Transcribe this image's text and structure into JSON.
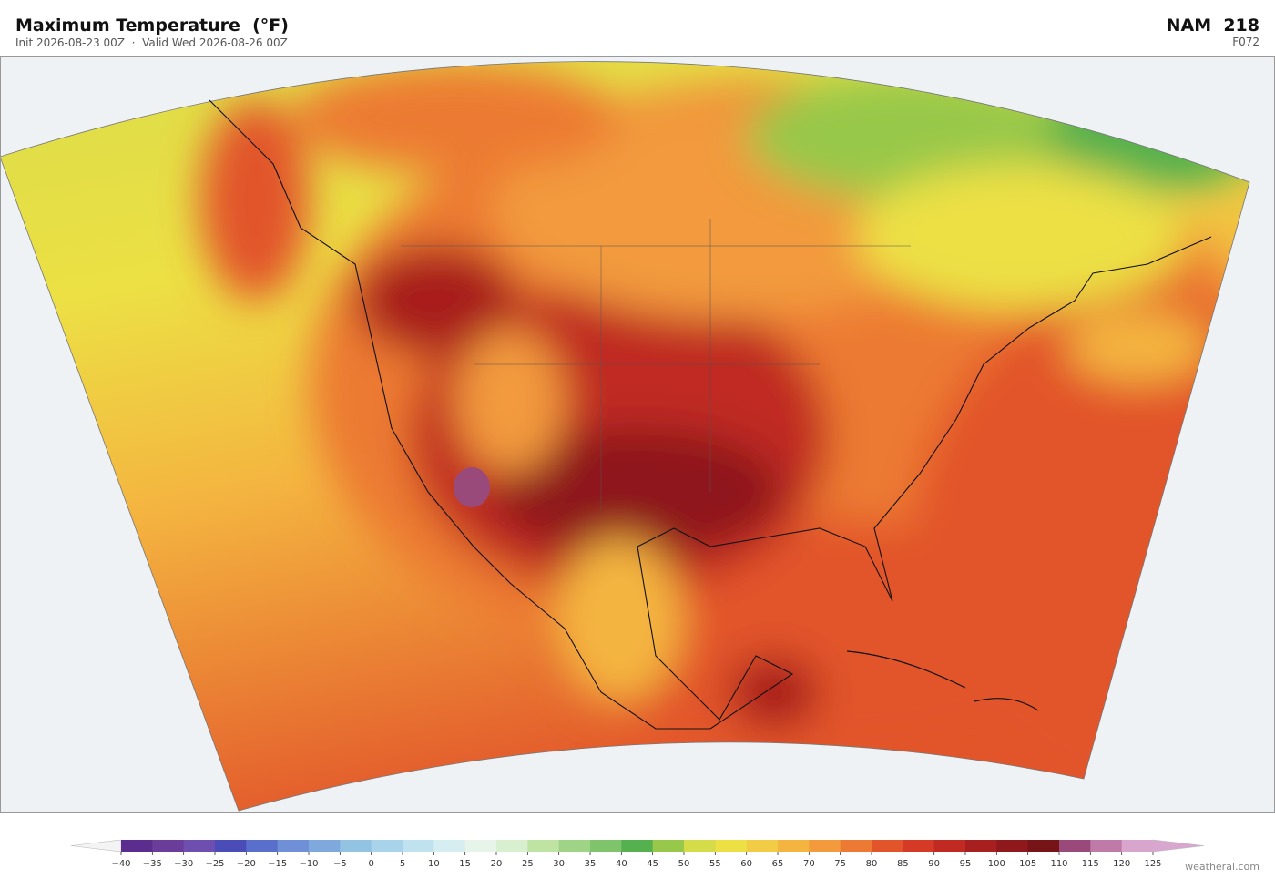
{
  "header": {
    "title": "Maximum Temperature  (°F)",
    "subtitle": "Init 2026-08-23 00Z  ·  Valid Wed 2026-08-26 00Z",
    "model": "NAM  218",
    "forecast_hour": "F072"
  },
  "colorbar": {
    "ticks": [
      {
        "value": -40,
        "label": "−40"
      },
      {
        "value": -35,
        "label": "−35"
      },
      {
        "value": -30,
        "label": "−30"
      },
      {
        "value": -25,
        "label": "−25"
      },
      {
        "value": -20,
        "label": "−20"
      },
      {
        "value": -15,
        "label": "−15"
      },
      {
        "value": -10,
        "label": "−10"
      },
      {
        "value": -5,
        "label": "−5"
      },
      0,
      5,
      10,
      15,
      20,
      25,
      30,
      35,
      40,
      45,
      50,
      55,
      60,
      65,
      70,
      75,
      80,
      85,
      90,
      95,
      100,
      105,
      110,
      115,
      120,
      125
    ],
    "colors": [
      "#5b2d8e",
      "#6a3d9a",
      "#6e4fb0",
      "#4a4db8",
      "#5a6fcc",
      "#6f8fd6",
      "#7fa8dc",
      "#93c3e3",
      "#a9d3ea",
      "#c0e2ef",
      "#d6edf2",
      "#e6f4ea",
      "#d8efd0",
      "#bfe3a3",
      "#9fd486",
      "#7fc46a",
      "#55b04e",
      "#98c84a",
      "#d5dc4a",
      "#ece044",
      "#f3cc45",
      "#f4b540",
      "#f29a3c",
      "#ec7a33",
      "#e2552a",
      "#d43a25",
      "#c02a22",
      "#a81f1f",
      "#8e181c",
      "#761418",
      "#9a4a7a",
      "#c07aa8",
      "#d8a5cc"
    ],
    "under_color": "#f4f4f4",
    "over_color": "#d9a6d0"
  },
  "footer": {
    "credit": "weatherai.com"
  }
}
